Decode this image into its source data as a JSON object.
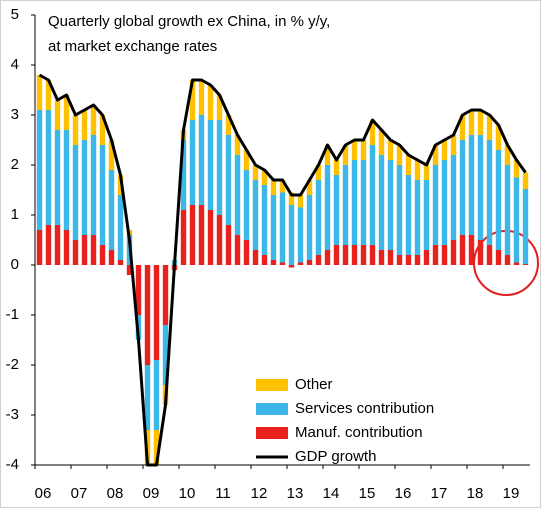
{
  "chart_data": {
    "type": "bar",
    "title_lines": [
      "Quarterly global growth ex China, in % y/y,",
      "at market exchange rates"
    ],
    "categories": [
      "06",
      null,
      null,
      null,
      "07",
      null,
      null,
      null,
      "08",
      null,
      null,
      null,
      "09",
      null,
      null,
      null,
      "10",
      null,
      null,
      null,
      "11",
      null,
      null,
      null,
      "12",
      null,
      null,
      null,
      "13",
      null,
      null,
      null,
      "14",
      null,
      null,
      null,
      "15",
      null,
      null,
      null,
      "16",
      null,
      null,
      null,
      "17",
      null,
      null,
      null,
      "18",
      null,
      null,
      null,
      "19",
      null,
      null
    ],
    "ylim": [
      -4,
      5
    ],
    "yticks": [
      -4,
      -3,
      -2,
      -1,
      0,
      1,
      2,
      3,
      4,
      5
    ],
    "series": [
      {
        "name": "Manuf. contribution",
        "type": "bar",
        "color": "#e8201e",
        "values": [
          0.7,
          0.8,
          0.8,
          0.7,
          0.5,
          0.6,
          0.6,
          0.4,
          0.3,
          0.1,
          -0.2,
          -1.0,
          -2.0,
          -1.9,
          -1.2,
          -0.1,
          1.1,
          1.2,
          1.2,
          1.1,
          1.0,
          0.8,
          0.6,
          0.5,
          0.3,
          0.2,
          0.1,
          0.05,
          -0.05,
          0.05,
          0.1,
          0.2,
          0.3,
          0.4,
          0.4,
          0.4,
          0.4,
          0.4,
          0.3,
          0.3,
          0.2,
          0.2,
          0.2,
          0.3,
          0.4,
          0.4,
          0.5,
          0.6,
          0.6,
          0.5,
          0.4,
          0.3,
          0.2,
          0.05,
          0.02
        ]
      },
      {
        "name": "Services contribution",
        "type": "bar",
        "color": "#3db6e8",
        "values": [
          2.4,
          2.3,
          1.9,
          2.0,
          1.9,
          1.9,
          2.0,
          2.0,
          1.6,
          1.3,
          0.6,
          -0.5,
          -1.3,
          -1.4,
          -1.2,
          0.1,
          1.4,
          1.7,
          1.8,
          1.8,
          1.9,
          1.8,
          1.6,
          1.4,
          1.4,
          1.4,
          1.3,
          1.4,
          1.2,
          1.1,
          1.3,
          1.5,
          1.7,
          1.4,
          1.6,
          1.7,
          1.7,
          2.0,
          1.9,
          1.8,
          1.8,
          1.6,
          1.5,
          1.4,
          1.6,
          1.7,
          1.7,
          1.9,
          2.0,
          2.1,
          2.1,
          2.0,
          1.8,
          1.7,
          1.5
        ]
      },
      {
        "name": "Other",
        "type": "bar",
        "color": "#ffc000",
        "values": [
          0.7,
          0.6,
          0.6,
          0.7,
          0.6,
          0.6,
          0.6,
          0.6,
          0.6,
          0.4,
          0.1,
          0.0,
          -0.7,
          -0.7,
          -0.4,
          0.0,
          0.2,
          0.8,
          0.7,
          0.7,
          0.5,
          0.4,
          0.4,
          0.4,
          0.3,
          0.3,
          0.3,
          0.25,
          0.25,
          0.25,
          0.3,
          0.3,
          0.4,
          0.3,
          0.4,
          0.4,
          0.4,
          0.5,
          0.5,
          0.4,
          0.4,
          0.4,
          0.4,
          0.3,
          0.4,
          0.4,
          0.4,
          0.5,
          0.5,
          0.5,
          0.5,
          0.5,
          0.4,
          0.35,
          0.33
        ]
      },
      {
        "name": "GDP growth",
        "type": "line",
        "color": "#000000",
        "values": [
          3.8,
          3.7,
          3.3,
          3.4,
          3.0,
          3.1,
          3.2,
          3.0,
          2.5,
          1.8,
          0.5,
          -1.5,
          -4.0,
          -4.0,
          -2.8,
          0.0,
          2.7,
          3.7,
          3.7,
          3.6,
          3.4,
          3.0,
          2.6,
          2.3,
          2.0,
          1.9,
          1.7,
          1.7,
          1.4,
          1.4,
          1.7,
          2.0,
          2.4,
          2.1,
          2.4,
          2.5,
          2.5,
          2.9,
          2.7,
          2.5,
          2.4,
          2.2,
          2.1,
          2.0,
          2.4,
          2.5,
          2.6,
          3.0,
          3.1,
          3.1,
          3.0,
          2.8,
          2.4,
          2.1,
          1.85
        ]
      }
    ]
  }
}
